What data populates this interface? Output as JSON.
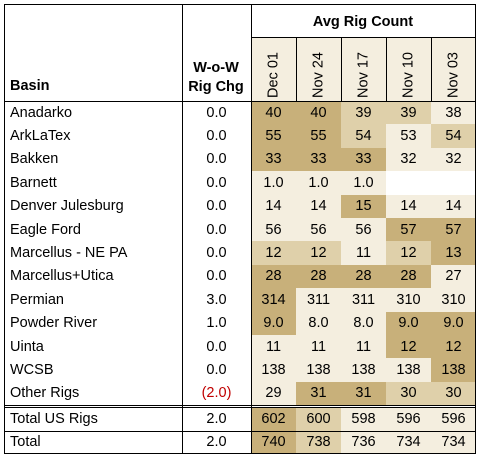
{
  "headers": {
    "basin": "Basin",
    "wow_line1": "W-o-W",
    "wow_line2": "Rig Chg",
    "avg_rig_count": "Avg Rig Count",
    "dates": [
      "Dec 01",
      "Nov 24",
      "Nov 17",
      "Nov 10",
      "Nov 03"
    ]
  },
  "colors": {
    "dark": "#c8b07a",
    "medium": "#dfd0aa",
    "light": "#f4eedf",
    "negative_text": "#c00000"
  },
  "rows": [
    {
      "basin": "Anadarko",
      "chg": "0.0",
      "values": [
        "40",
        "40",
        "39",
        "39",
        "38"
      ],
      "shade": [
        "dark",
        "dark",
        "medium",
        "medium",
        "light"
      ]
    },
    {
      "basin": "ArkLaTex",
      "chg": "0.0",
      "values": [
        "55",
        "55",
        "54",
        "53",
        "54"
      ],
      "shade": [
        "dark",
        "dark",
        "medium",
        "light",
        "medium"
      ]
    },
    {
      "basin": "Bakken",
      "chg": "0.0",
      "values": [
        "33",
        "33",
        "33",
        "32",
        "32"
      ],
      "shade": [
        "dark",
        "dark",
        "dark",
        "light",
        "light"
      ]
    },
    {
      "basin": "Barnett",
      "chg": "0.0",
      "values": [
        "1.0",
        "1.0",
        "1.0",
        "",
        ""
      ],
      "shade": [
        "light",
        "light",
        "light",
        "none",
        "none"
      ]
    },
    {
      "basin": "Denver Julesburg",
      "chg": "0.0",
      "values": [
        "14",
        "14",
        "15",
        "14",
        "14"
      ],
      "shade": [
        "light",
        "light",
        "dark",
        "light",
        "light"
      ]
    },
    {
      "basin": "Eagle Ford",
      "chg": "0.0",
      "values": [
        "56",
        "56",
        "56",
        "57",
        "57"
      ],
      "shade": [
        "light",
        "light",
        "light",
        "dark",
        "dark"
      ]
    },
    {
      "basin": "Marcellus - NE PA",
      "chg": "0.0",
      "values": [
        "12",
        "12",
        "11",
        "12",
        "13"
      ],
      "shade": [
        "medium",
        "medium",
        "light",
        "medium",
        "dark"
      ]
    },
    {
      "basin": "Marcellus+Utica",
      "chg": "0.0",
      "values": [
        "28",
        "28",
        "28",
        "28",
        "27"
      ],
      "shade": [
        "dark",
        "dark",
        "dark",
        "dark",
        "light"
      ]
    },
    {
      "basin": "Permian",
      "chg": "3.0",
      "values": [
        "314",
        "311",
        "311",
        "310",
        "310"
      ],
      "shade": [
        "dark",
        "light",
        "light",
        "light",
        "light"
      ]
    },
    {
      "basin": "Powder River",
      "chg": "1.0",
      "values": [
        "9.0",
        "8.0",
        "8.0",
        "9.0",
        "9.0"
      ],
      "shade": [
        "dark",
        "light",
        "light",
        "dark",
        "dark"
      ]
    },
    {
      "basin": "Uinta",
      "chg": "0.0",
      "values": [
        "11",
        "11",
        "11",
        "12",
        "12"
      ],
      "shade": [
        "light",
        "light",
        "light",
        "dark",
        "dark"
      ]
    },
    {
      "basin": "WCSB",
      "chg": "0.0",
      "values": [
        "138",
        "138",
        "138",
        "138",
        "138"
      ],
      "shade": [
        "light",
        "light",
        "light",
        "light",
        "dark"
      ]
    },
    {
      "basin": "Other Rigs",
      "chg": "(2.0)",
      "chg_negative": true,
      "values": [
        "29",
        "31",
        "31",
        "30",
        "30"
      ],
      "shade": [
        "light",
        "dark",
        "dark",
        "medium",
        "medium"
      ]
    }
  ],
  "totals": [
    {
      "basin": "Total US Rigs",
      "chg": "2.0",
      "values": [
        "602",
        "600",
        "598",
        "596",
        "596"
      ],
      "shade": [
        "dark",
        "medium",
        "light",
        "light",
        "light"
      ]
    },
    {
      "basin": "Total",
      "chg": "2.0",
      "values": [
        "740",
        "738",
        "736",
        "734",
        "734"
      ],
      "shade": [
        "dark",
        "medium",
        "light",
        "light",
        "light"
      ]
    }
  ]
}
